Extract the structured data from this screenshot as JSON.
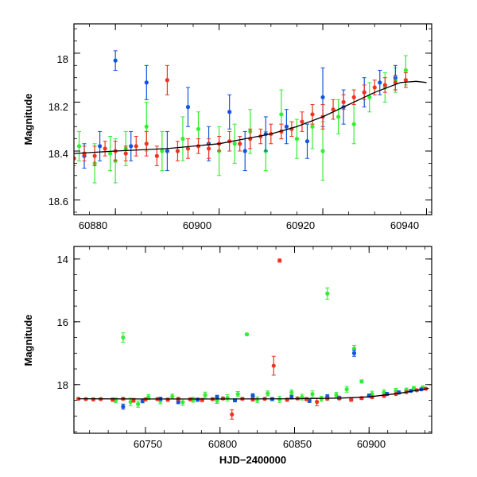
{
  "chart_data": [
    {
      "type": "scatter",
      "panel": "top",
      "xlabel": "",
      "ylabel": "Magnitude",
      "xlim": [
        60872,
        60941
      ],
      "ylim": [
        18.66,
        17.88
      ],
      "y_inverted": true,
      "xticks": [
        60880,
        60900,
        60920,
        60940
      ],
      "yticks": [
        18,
        18.2,
        18.4,
        18.6
      ],
      "xtick_labels": [
        "60880",
        "60900",
        "60920",
        "60940"
      ],
      "ytick_labels": [
        "18",
        "18.2",
        "18.4",
        "18.6"
      ],
      "colors": {
        "green": "#33ee33",
        "blue": "#1155dd",
        "red": "#ee3322",
        "model": "#000000"
      },
      "model_curve": {
        "x": [
          60872,
          60880,
          60890,
          60900,
          60905,
          60910,
          60915,
          60920,
          60925,
          60930,
          60935,
          60938,
          60940
        ],
        "y": [
          18.41,
          18.4,
          18.39,
          18.37,
          18.35,
          18.33,
          18.3,
          18.26,
          18.21,
          18.16,
          18.12,
          18.115,
          18.12
        ]
      },
      "series": [
        {
          "color_key": "green",
          "x": [
            60873,
            60876,
            60879,
            60880,
            60882,
            60886,
            60889,
            60893,
            60896,
            60900,
            60903,
            60906,
            60909,
            60912,
            60915,
            60918,
            60920,
            60923,
            60926,
            60929,
            60932,
            60934,
            60936
          ],
          "y": [
            18.38,
            18.45,
            18.41,
            18.44,
            18.39,
            18.3,
            18.4,
            18.35,
            18.31,
            18.4,
            18.37,
            18.32,
            18.4,
            18.25,
            18.35,
            18.3,
            18.4,
            18.26,
            18.29,
            18.18,
            18.14,
            18.11,
            18.07
          ],
          "err": [
            0.06,
            0.08,
            0.07,
            0.09,
            0.07,
            0.1,
            0.08,
            0.09,
            0.07,
            0.1,
            0.08,
            0.09,
            0.08,
            0.1,
            0.08,
            0.09,
            0.12,
            0.07,
            0.08,
            0.06,
            0.06,
            0.05,
            0.06
          ]
        },
        {
          "color_key": "blue",
          "x": [
            60874,
            60877,
            60880,
            60883,
            60886,
            60890,
            60894,
            60898,
            60902,
            60905,
            60909,
            60913,
            60917,
            60920,
            60924,
            60928,
            60931,
            60934
          ],
          "y": [
            18.42,
            18.38,
            18.03,
            18.38,
            18.12,
            18.4,
            18.22,
            18.37,
            18.24,
            18.4,
            18.33,
            18.3,
            18.36,
            18.18,
            18.22,
            18.16,
            18.12,
            18.1
          ],
          "err": [
            0.05,
            0.06,
            0.04,
            0.06,
            0.07,
            0.08,
            0.08,
            0.07,
            0.07,
            0.08,
            0.07,
            0.07,
            0.07,
            0.12,
            0.07,
            0.06,
            0.05,
            0.05
          ]
        },
        {
          "color_key": "red",
          "x": [
            60872,
            60874,
            60876,
            60878,
            60880,
            60882,
            60884,
            60886,
            60888,
            60890,
            60892,
            60894,
            60896,
            60898,
            60900,
            60902,
            60904,
            60906,
            60908,
            60910,
            60912,
            60914,
            60916,
            60918,
            60920,
            60922,
            60924,
            60926,
            60928,
            60930,
            60932,
            60934,
            60936
          ],
          "y": [
            18.43,
            18.41,
            18.42,
            18.39,
            18.4,
            18.41,
            18.38,
            18.37,
            18.42,
            18.11,
            18.4,
            18.39,
            18.38,
            18.39,
            18.37,
            18.36,
            18.37,
            18.35,
            18.34,
            18.33,
            18.32,
            18.31,
            18.28,
            18.25,
            18.26,
            18.23,
            18.2,
            18.18,
            18.16,
            18.14,
            18.13,
            18.12,
            18.11
          ],
          "err": [
            0.03,
            0.03,
            0.04,
            0.03,
            0.04,
            0.03,
            0.04,
            0.05,
            0.04,
            0.06,
            0.04,
            0.04,
            0.03,
            0.04,
            0.03,
            0.04,
            0.03,
            0.04,
            0.03,
            0.04,
            0.03,
            0.03,
            0.04,
            0.04,
            0.05,
            0.04,
            0.03,
            0.03,
            0.03,
            0.03,
            0.03,
            0.03,
            0.03
          ]
        }
      ]
    },
    {
      "type": "scatter",
      "panel": "bottom",
      "xlabel": "HJD−2400000",
      "ylabel": "Magnitude",
      "xlim": [
        60702,
        60942
      ],
      "ylim": [
        19.55,
        13.6
      ],
      "y_inverted": true,
      "xticks": [
        60750,
        60800,
        60850,
        60900
      ],
      "yticks": [
        14,
        16,
        18
      ],
      "xtick_labels": [
        "60750",
        "60800",
        "60850",
        "60900"
      ],
      "ytick_labels": [
        "14",
        "16",
        "18"
      ],
      "colors": {
        "green": "#33ee33",
        "blue": "#1155dd",
        "red": "#ee3322",
        "model": "#000000"
      },
      "model_curve": {
        "x": [
          60705,
          60750,
          60800,
          60850,
          60880,
          60900,
          60920,
          60940
        ],
        "y": [
          18.45,
          18.46,
          18.46,
          18.45,
          18.43,
          18.39,
          18.28,
          18.12
        ]
      },
      "series": [
        {
          "color_key": "green",
          "x": [
            60730,
            60735,
            60740,
            60745,
            60752,
            60760,
            60768,
            60775,
            60782,
            60790,
            60798,
            60805,
            60812,
            60818,
            60825,
            60832,
            60840,
            60848,
            60855,
            60862,
            60868,
            60872,
            60878,
            60885,
            60890,
            60895,
            60902,
            60910,
            60918,
            60925,
            60930,
            60936
          ],
          "y": [
            18.5,
            16.5,
            18.55,
            18.62,
            18.4,
            18.52,
            18.38,
            18.56,
            18.48,
            18.33,
            18.52,
            18.42,
            18.3,
            16.4,
            18.48,
            18.28,
            18.47,
            18.25,
            18.4,
            18.3,
            18.45,
            15.1,
            18.33,
            18.15,
            16.85,
            17.9,
            18.3,
            18.25,
            18.2,
            18.18,
            18.12,
            18.1
          ],
          "err": [
            0.08,
            0.15,
            0.12,
            0.1,
            0.08,
            0.09,
            0.08,
            0.1,
            0.08,
            0.09,
            0.08,
            0.1,
            0.08,
            0.02,
            0.09,
            0.08,
            0.1,
            0.08,
            0.09,
            0.1,
            0.08,
            0.18,
            0.08,
            0.09,
            0.1,
            0.05,
            0.09,
            0.08,
            0.08,
            0.07,
            0.06,
            0.06
          ]
        },
        {
          "color_key": "blue",
          "x": [
            60735,
            60748,
            60760,
            60772,
            60785,
            60798,
            60810,
            60822,
            60835,
            60848,
            60860,
            60872,
            60880,
            60890,
            60900,
            60912,
            60920,
            60928,
            60935
          ],
          "y": [
            18.7,
            18.52,
            18.45,
            18.55,
            18.48,
            18.4,
            18.5,
            18.35,
            18.46,
            18.4,
            18.52,
            18.38,
            18.42,
            17.0,
            18.35,
            18.3,
            18.25,
            18.2,
            18.15
          ],
          "err": [
            0.08,
            0.06,
            0.05,
            0.06,
            0.05,
            0.06,
            0.05,
            0.06,
            0.05,
            0.06,
            0.05,
            0.06,
            0.05,
            0.1,
            0.05,
            0.05,
            0.05,
            0.04,
            0.04
          ]
        },
        {
          "color_key": "red",
          "x": [
            60705,
            60710,
            60715,
            60720,
            60728,
            60735,
            60742,
            60750,
            60758,
            60765,
            60772,
            60780,
            60788,
            60795,
            60802,
            60808,
            60815,
            60822,
            60830,
            60836,
            60840,
            60845,
            60852,
            60858,
            60865,
            60872,
            60880,
            60888,
            60895,
            60902,
            60910,
            60918,
            60925,
            60932,
            60938
          ],
          "y": [
            18.45,
            18.46,
            18.47,
            18.46,
            18.48,
            18.45,
            18.5,
            18.47,
            18.46,
            18.48,
            18.45,
            18.47,
            18.49,
            18.46,
            18.44,
            18.95,
            18.45,
            18.47,
            18.45,
            17.4,
            14.05,
            18.48,
            18.44,
            18.46,
            18.55,
            18.45,
            18.44,
            18.48,
            18.43,
            18.4,
            18.36,
            18.3,
            18.24,
            18.18,
            18.13
          ],
          "err": [
            0.03,
            0.03,
            0.04,
            0.03,
            0.05,
            0.04,
            0.06,
            0.04,
            0.04,
            0.05,
            0.04,
            0.04,
            0.05,
            0.04,
            0.04,
            0.15,
            0.04,
            0.05,
            0.04,
            0.3,
            0.05,
            0.05,
            0.04,
            0.05,
            0.12,
            0.04,
            0.04,
            0.05,
            0.04,
            0.04,
            0.03,
            0.03,
            0.03,
            0.03,
            0.03
          ]
        }
      ]
    }
  ]
}
